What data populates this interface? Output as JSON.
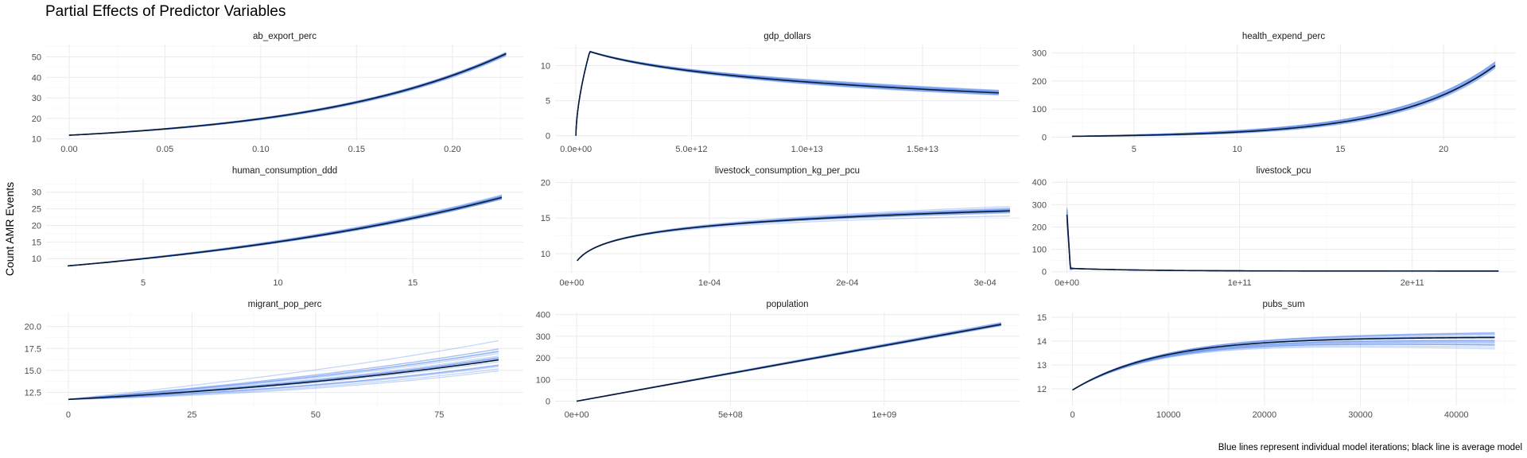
{
  "title": "Partial Effects of Predictor Variables",
  "ylabel": "Count AMR Events",
  "caption": "Blue lines represent individual model iterations; black line is average model",
  "colors": {
    "iteration": "#5b8def",
    "mean": "#0b1a33",
    "background": "#ffffff"
  },
  "chart_data": [
    {
      "type": "line",
      "title": "ab_export_perc",
      "xlim": [
        -0.012,
        0.237
      ],
      "ylim": [
        9.5,
        56
      ],
      "xticks": [
        0,
        0.05,
        0.1,
        0.15,
        0.2
      ],
      "xtick_labels": [
        "0.00",
        "0.05",
        "0.10",
        "0.15",
        "0.20"
      ],
      "yticks": [
        10,
        20,
        30,
        40,
        50
      ],
      "ytick_labels": [
        "10",
        "20",
        "30",
        "40",
        "50"
      ],
      "shape": "exp",
      "x0": 0,
      "x1": 0.228,
      "y0": 11.8,
      "y1": 51.5,
      "k": 2.2,
      "spread": 3.5,
      "spread_mode": "end",
      "n_iter": 20
    },
    {
      "type": "line",
      "title": "gdp_dollars",
      "xlim": [
        -900000000000.0,
        19200000000000.0
      ],
      "ylim": [
        -0.6,
        13
      ],
      "xticks": [
        0,
        5000000000000.0,
        10000000000000.0,
        15000000000000.0
      ],
      "xtick_labels": [
        "0.0e+00",
        "5.0e+12",
        "1.0e+13",
        "1.5e+13"
      ],
      "yticks": [
        0,
        5,
        10
      ],
      "ytick_labels": [
        "0",
        "5",
        "10"
      ],
      "shape": "peak",
      "x0": 0,
      "x1": 18300000000000.0,
      "y0": 0,
      "y1": 6.1,
      "xp": 600000000000.0,
      "yp": 12.0,
      "spread": 1.2,
      "spread_mode": "end",
      "n_iter": 20
    },
    {
      "type": "line",
      "title": "health_expend_perc",
      "xlim": [
        1.0,
        23.5
      ],
      "ylim": [
        -10,
        330
      ],
      "xticks": [
        5,
        10,
        15,
        20
      ],
      "xtick_labels": [
        "5",
        "10",
        "15",
        "20"
      ],
      "yticks": [
        0,
        100,
        200,
        300
      ],
      "ytick_labels": [
        "0",
        "100",
        "200",
        "300"
      ],
      "shape": "exp",
      "x0": 2,
      "x1": 22.5,
      "y0": 3,
      "y1": 255,
      "k": 4.3,
      "spread": 30,
      "spread_mode": "end",
      "n_iter": 20
    },
    {
      "type": "line",
      "title": "human_consumption_ddd",
      "xlim": [
        1.4,
        19.1
      ],
      "ylim": [
        5.5,
        34
      ],
      "xticks": [
        5,
        10,
        15
      ],
      "xtick_labels": [
        "5",
        "10",
        "15"
      ],
      "yticks": [
        10,
        15,
        20,
        25,
        30
      ],
      "ytick_labels": [
        "10",
        "15",
        "20",
        "25",
        "30"
      ],
      "shape": "exp",
      "x0": 2.2,
      "x1": 18.3,
      "y0": 7.8,
      "y1": 28.4,
      "k": 1.1,
      "spread": 2.6,
      "spread_mode": "end",
      "n_iter": 20
    },
    {
      "type": "line",
      "title": "livestock_consumption_kg_per_pcu",
      "xlim": [
        -1.2e-05,
        0.000325
      ],
      "ylim": [
        7.2,
        20.5
      ],
      "xticks": [
        0,
        0.0001,
        0.0002,
        0.0003
      ],
      "xtick_labels": [
        "0e+00",
        "1e-04",
        "2e-04",
        "3e-04"
      ],
      "yticks": [
        10,
        15,
        20
      ],
      "ytick_labels": [
        "10",
        "15",
        "20"
      ],
      "shape": "log",
      "x0": 4e-06,
      "x1": 0.000318,
      "y0": 9.0,
      "y1": 16.0,
      "spread": 2.4,
      "spread_mode": "end",
      "n_iter": 20
    },
    {
      "type": "line",
      "title": "livestock_pcu",
      "xlim": [
        -9000000000.0,
        260000000000.0
      ],
      "ylim": [
        -8,
        415
      ],
      "xticks": [
        0,
        100000000000.0,
        200000000000.0
      ],
      "xtick_labels": [
        "0e+00",
        "1e+11",
        "2e+11"
      ],
      "yticks": [
        0,
        100,
        200,
        300,
        400
      ],
      "ytick_labels": [
        "0",
        "100",
        "200",
        "300",
        "400"
      ],
      "shape": "drop",
      "x0": 0,
      "x1": 250000000000.0,
      "y0": 255,
      "y1": 3,
      "xd": 2000000000.0,
      "yd": 15,
      "spread": 150,
      "spread_mode": "start",
      "n_iter": 20
    },
    {
      "type": "line",
      "title": "migrant_pop_perc",
      "xlim": [
        -4.5,
        92
      ],
      "ylim": [
        11.0,
        21.6
      ],
      "xticks": [
        0,
        25,
        50,
        75
      ],
      "xtick_labels": [
        "0",
        "25",
        "50",
        "75"
      ],
      "yticks": [
        12.5,
        15.0,
        17.5,
        20.0
      ],
      "ytick_labels": [
        "12.5",
        "15.0",
        "17.5",
        "20.0"
      ],
      "shape": "exp",
      "x0": 0,
      "x1": 87,
      "y0": 11.7,
      "y1": 16.2,
      "k": 1.0,
      "spread": 5.5,
      "spread_mode": "end",
      "n_iter": 20
    },
    {
      "type": "line",
      "title": "population",
      "xlim": [
        -70000000.0,
        1440000000.0
      ],
      "ylim": [
        -20,
        410
      ],
      "xticks": [
        0,
        500000000.0,
        1000000000.0
      ],
      "xtick_labels": [
        "0e+00",
        "5e+08",
        "1e+09"
      ],
      "yticks": [
        0,
        100,
        200,
        300,
        400
      ],
      "ytick_labels": [
        "0",
        "100",
        "200",
        "300",
        "400"
      ],
      "shape": "linear",
      "x0": 0,
      "x1": 1380000000.0,
      "y0": 0,
      "y1": 355,
      "spread": 28,
      "spread_mode": "end",
      "n_iter": 20
    },
    {
      "type": "line",
      "title": "pubs_sum",
      "xlim": [
        -2200,
        46200
      ],
      "ylim": [
        11.3,
        15.2
      ],
      "xticks": [
        0,
        10000,
        20000,
        30000,
        40000
      ],
      "xtick_labels": [
        "0",
        "10000",
        "20000",
        "30000",
        "40000"
      ],
      "yticks": [
        12,
        13,
        14,
        15
      ],
      "ytick_labels": [
        "12",
        "13",
        "14",
        "15"
      ],
      "shape": "sat",
      "x0": 0,
      "x1": 44000,
      "y0": 11.95,
      "y1": 14.15,
      "tau": 9000,
      "spread": 1.5,
      "spread_mode": "end",
      "n_iter": 20
    }
  ]
}
